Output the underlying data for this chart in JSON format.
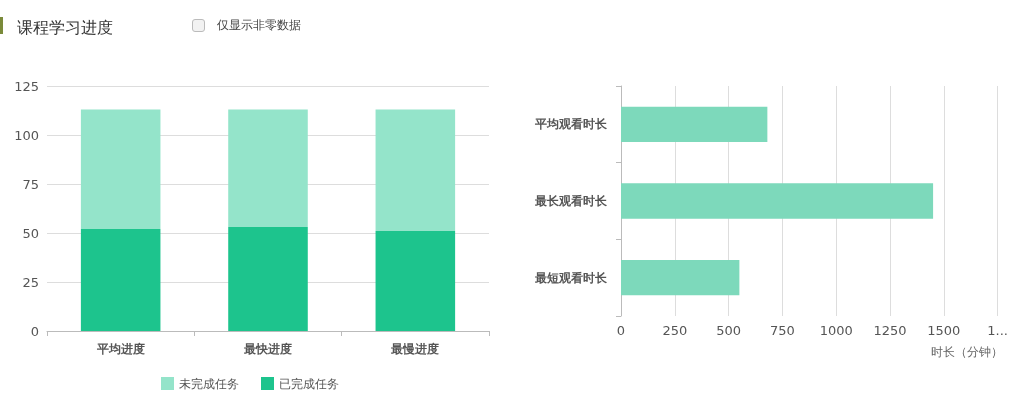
{
  "chart_data": [
    {
      "type": "bar",
      "title": "课程学习进度",
      "annotations": [
        "仅显示非零数据"
      ],
      "categories": [
        "平均进度",
        "最快进度",
        "最慢进度"
      ],
      "stacked": true,
      "series": [
        {
          "name": "已完成任务",
          "color": "#1dc48d",
          "values": [
            52,
            53,
            51
          ]
        },
        {
          "name": "未完成任务",
          "color": "#94e4ca",
          "values": [
            61,
            60,
            62
          ]
        }
      ],
      "ylim": [
        0,
        125
      ],
      "yticks": [
        0,
        25,
        50,
        75,
        100,
        125
      ],
      "grid": "y",
      "legend": "bottom"
    },
    {
      "type": "bar",
      "orientation": "horizontal",
      "categories": [
        "平均观看时长",
        "最长观看时长",
        "最短观看时长"
      ],
      "values": [
        680,
        1450,
        550
      ],
      "color": "#7dd9bb",
      "xlabel": "时长（分钟）",
      "xlim": [
        0,
        1750
      ],
      "xticks": [
        0,
        250,
        500,
        750,
        1000,
        1250,
        1500,
        {
          "value": 1750,
          "label": "1..."
        }
      ],
      "grid": "x"
    }
  ]
}
